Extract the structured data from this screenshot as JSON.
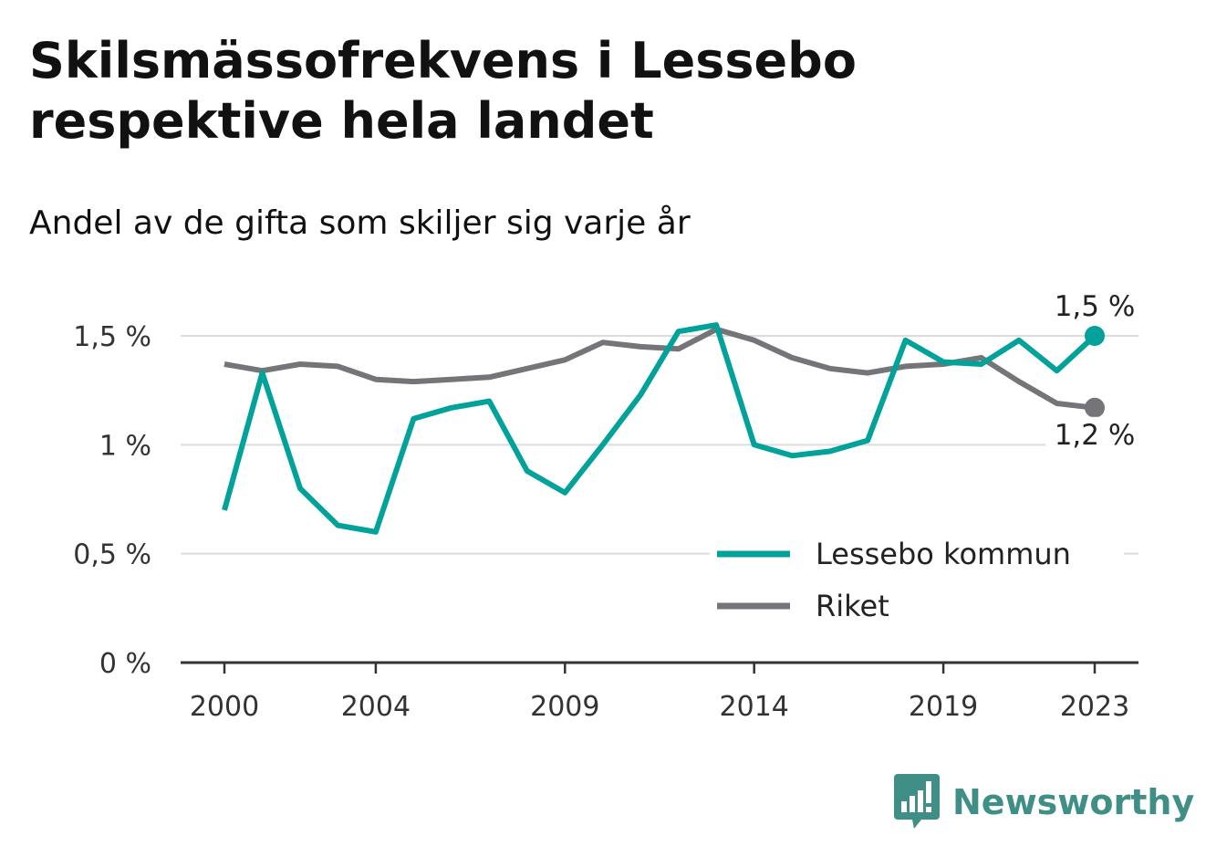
{
  "title": "Skilsmässofrekvens i Lessebo respektive hela landet",
  "subtitle": "Andel av de gifta som skiljer sig varje år",
  "brand": "Newsworthy",
  "chart_data": {
    "type": "line",
    "x": [
      2000,
      2001,
      2002,
      2003,
      2004,
      2005,
      2006,
      2007,
      2008,
      2009,
      2010,
      2011,
      2012,
      2013,
      2014,
      2015,
      2016,
      2017,
      2018,
      2019,
      2020,
      2021,
      2022,
      2023
    ],
    "xticks": [
      "2000",
      "2004",
      "2009",
      "2014",
      "2019",
      "2023"
    ],
    "yticks": [
      "0 %",
      "0,5 %",
      "1 %",
      "1,5 %"
    ],
    "ylim": [
      0,
      1.5
    ],
    "grid": true,
    "legend_position": "bottom-right",
    "series": [
      {
        "name": "Lessebo kommun",
        "color": "#00a29a",
        "values": [
          0.7,
          1.33,
          0.8,
          0.63,
          0.6,
          1.12,
          1.17,
          1.2,
          0.88,
          0.78,
          1.0,
          1.23,
          1.52,
          1.55,
          1.0,
          0.95,
          0.97,
          1.02,
          1.48,
          1.38,
          1.37,
          1.48,
          1.34,
          1.5
        ],
        "end_label": "1,5 %"
      },
      {
        "name": "Riket",
        "color": "#747579",
        "values": [
          1.37,
          1.34,
          1.37,
          1.36,
          1.3,
          1.29,
          1.3,
          1.31,
          1.35,
          1.39,
          1.47,
          1.45,
          1.44,
          1.53,
          1.48,
          1.4,
          1.35,
          1.33,
          1.36,
          1.37,
          1.4,
          1.29,
          1.19,
          1.17
        ],
        "end_label": "1,2 %"
      }
    ]
  }
}
